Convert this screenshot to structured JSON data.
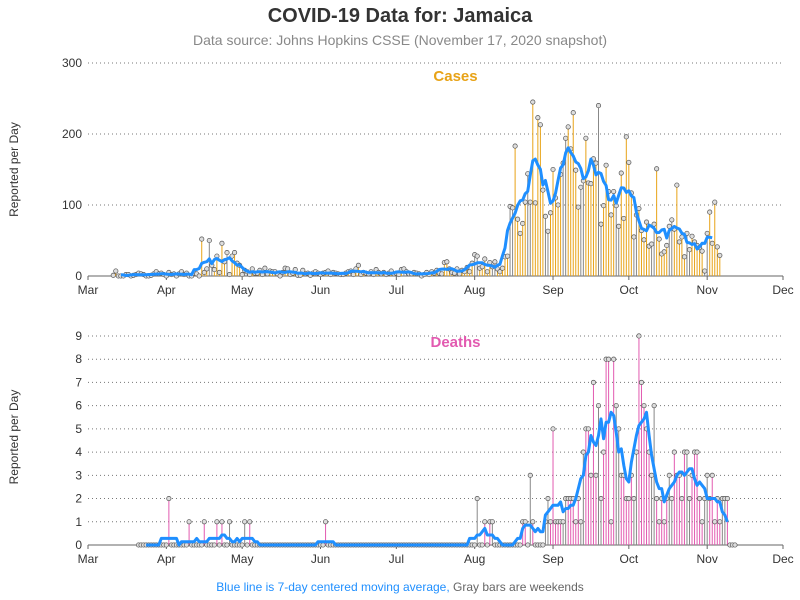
{
  "title": "COVID-19 Data for: Jamaica",
  "subtitle": "Data source: Johns Hopkins CSSE (November 17, 2020 snapshot)",
  "footnote": {
    "blue_part": "Blue line is 7-day centered moving average,",
    "gray_part": "Gray bars are weekends"
  },
  "colors": {
    "cases": "#e8a317",
    "deaths": "#e25ab0",
    "weekend": "#888888",
    "moving_average": "#1f8fff",
    "axis": "#666666"
  },
  "chart_data": [
    {
      "type": "bar",
      "title": "Cases",
      "ylabel": "Reported per Day",
      "xlabel": "",
      "x_ticks": [
        "Mar",
        "Apr",
        "May",
        "Jun",
        "Jul",
        "Aug",
        "Sep",
        "Oct",
        "Nov",
        "Dec"
      ],
      "y_ticks": [
        0,
        100,
        200,
        300
      ],
      "ylim": [
        0,
        300
      ],
      "xlim": [
        "2020-03-01",
        "2020-12-01"
      ],
      "grid": "horizontal dotted",
      "start_date": "2020-03-11",
      "values": [
        1,
        7,
        0,
        0,
        0,
        2,
        2,
        0,
        1,
        2,
        4,
        3,
        2,
        0,
        0,
        1,
        3,
        6,
        3,
        4,
        2,
        0,
        5,
        2,
        3,
        0,
        3,
        6,
        2,
        4,
        0,
        0,
        4,
        3,
        0,
        52,
        5,
        10,
        50,
        15,
        9,
        28,
        5,
        46,
        20,
        33,
        2,
        28,
        33,
        18,
        15,
        2,
        8,
        6,
        2,
        10,
        4,
        4,
        8,
        2,
        11,
        3,
        7,
        6,
        6,
        3,
        0,
        5,
        11,
        10,
        2,
        4,
        9,
        1,
        1,
        8,
        3,
        4,
        1,
        4,
        6,
        4,
        2,
        4,
        5,
        7,
        2,
        5,
        4,
        3,
        2,
        2,
        4,
        6,
        7,
        2,
        10,
        15,
        2,
        5,
        4,
        3,
        6,
        2,
        9,
        5,
        3,
        5,
        2,
        4,
        7,
        3,
        4,
        2,
        9,
        10,
        6,
        3,
        3,
        5,
        4,
        3,
        0,
        2,
        5,
        2,
        6,
        4,
        8,
        4,
        3,
        19,
        20,
        10,
        5,
        4,
        10,
        3,
        8,
        6,
        12,
        6,
        18,
        30,
        28,
        11,
        13,
        24,
        6,
        19,
        13,
        20,
        10,
        6,
        11,
        27,
        28,
        98,
        96,
        183,
        80,
        60,
        74,
        104,
        144,
        104,
        245,
        103,
        223,
        213,
        121,
        84,
        63,
        89,
        150,
        110,
        100,
        143,
        159,
        194,
        210,
        179,
        230,
        149,
        97,
        125,
        134,
        194,
        131,
        130,
        165,
        159,
        240,
        73,
        99,
        156,
        119,
        86,
        119,
        99,
        70,
        145,
        81,
        196,
        160,
        117,
        55,
        86,
        95,
        64,
        51,
        76,
        42,
        45,
        73,
        151,
        52,
        31,
        34,
        43,
        70,
        79,
        66,
        128,
        48,
        55,
        27,
        60,
        37,
        56,
        48,
        43,
        40,
        35,
        7,
        60,
        90,
        46,
        104,
        41,
        29
      ]
    },
    {
      "type": "bar",
      "title": "Deaths",
      "ylabel": "Reported per Day",
      "xlabel": "",
      "x_ticks": [
        "Mar",
        "Apr",
        "May",
        "Jun",
        "Jul",
        "Aug",
        "Sep",
        "Oct",
        "Nov",
        "Dec"
      ],
      "y_ticks": [
        0,
        1,
        2,
        3,
        4,
        5,
        6,
        7,
        8,
        9
      ],
      "ylim": [
        0,
        9.3
      ],
      "xlim": [
        "2020-03-01",
        "2020-12-01"
      ],
      "grid": "horizontal dotted",
      "start_date": "2020-03-21",
      "values": [
        0,
        0,
        0,
        0,
        0,
        0,
        0,
        0,
        0,
        0,
        0,
        0,
        2,
        0,
        0,
        0,
        0,
        0,
        0,
        0,
        1,
        0,
        0,
        0,
        0,
        0,
        1,
        0,
        0,
        0,
        0,
        1,
        0,
        1,
        0,
        0,
        1,
        0,
        0,
        0,
        0,
        0,
        1,
        0,
        1,
        0,
        0,
        0,
        0,
        0,
        0,
        0,
        0,
        0,
        0,
        0,
        0,
        0,
        0,
        0,
        0,
        0,
        0,
        0,
        0,
        0,
        0,
        0,
        0,
        0,
        0,
        0,
        0,
        0,
        1,
        0,
        0,
        0,
        0,
        0,
        0,
        0,
        0,
        0,
        0,
        0,
        0,
        0,
        0,
        0,
        0,
        0,
        0,
        0,
        0,
        0,
        0,
        0,
        0,
        0,
        0,
        0,
        0,
        0,
        0,
        0,
        0,
        0,
        0,
        0,
        0,
        0,
        0,
        0,
        0,
        0,
        0,
        0,
        0,
        0,
        0,
        0,
        0,
        0,
        0,
        0,
        0,
        0,
        0,
        0,
        0,
        0,
        0,
        0,
        2,
        0,
        0,
        1,
        0,
        1,
        1,
        0,
        0,
        0,
        0,
        0,
        0,
        0,
        0,
        0,
        0,
        0,
        1,
        1,
        0,
        3,
        1,
        0,
        0,
        0,
        0,
        1,
        2,
        1,
        5,
        1,
        1,
        1,
        1,
        2,
        2,
        2,
        2,
        1,
        2,
        1,
        4,
        5,
        5,
        3,
        7,
        3,
        6,
        2,
        4,
        8,
        8,
        1,
        8,
        6,
        5,
        3,
        3,
        2,
        2,
        3,
        2,
        4,
        9,
        7,
        6,
        5,
        4,
        3,
        6,
        2,
        1,
        2,
        1,
        2,
        3,
        2,
        4,
        3,
        3,
        2,
        4,
        4,
        2,
        3,
        4,
        4,
        2,
        1,
        2,
        3,
        2,
        3,
        1,
        2,
        1,
        2,
        2,
        2,
        0,
        0,
        0
      ]
    }
  ]
}
